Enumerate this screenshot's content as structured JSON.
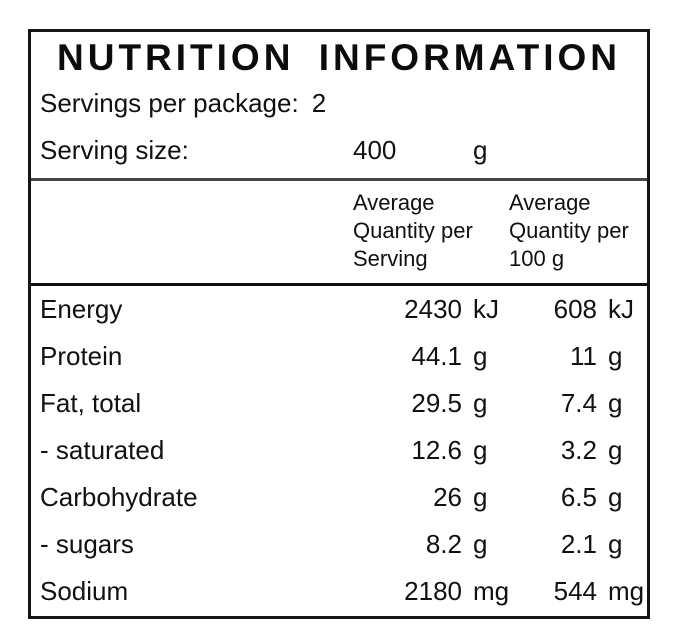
{
  "panel": {
    "title": "NUTRITION INFORMATION",
    "servings_per_package": {
      "label": "Servings per package:",
      "value": "2"
    },
    "serving_size": {
      "label": "Serving size:",
      "value": "400",
      "unit": "g"
    }
  },
  "table": {
    "column_headers": {
      "per_serving": "Average Quantity per Serving",
      "per_100g": "Average Quantity per 100 g"
    },
    "rows": [
      {
        "name": "Energy",
        "per_serving": "2430",
        "unit_serving": "kJ",
        "per_100g": "608",
        "unit_100g": "kJ"
      },
      {
        "name": "Protein",
        "per_serving": "44.1",
        "unit_serving": "g",
        "per_100g": "11",
        "unit_100g": "g"
      },
      {
        "name": "Fat, total",
        "per_serving": "29.5",
        "unit_serving": "g",
        "per_100g": "7.4",
        "unit_100g": "g"
      },
      {
        "name": "- saturated",
        "per_serving": "12.6",
        "unit_serving": "g",
        "per_100g": "3.2",
        "unit_100g": "g"
      },
      {
        "name": "Carbohydrate",
        "per_serving": "26",
        "unit_serving": "g",
        "per_100g": "6.5",
        "unit_100g": "g"
      },
      {
        "name": "- sugars",
        "per_serving": "8.2",
        "unit_serving": "g",
        "per_100g": "2.1",
        "unit_100g": "g"
      },
      {
        "name": "Sodium",
        "per_serving": "2180",
        "unit_serving": "mg",
        "per_100g": "544",
        "unit_100g": "mg"
      }
    ]
  }
}
